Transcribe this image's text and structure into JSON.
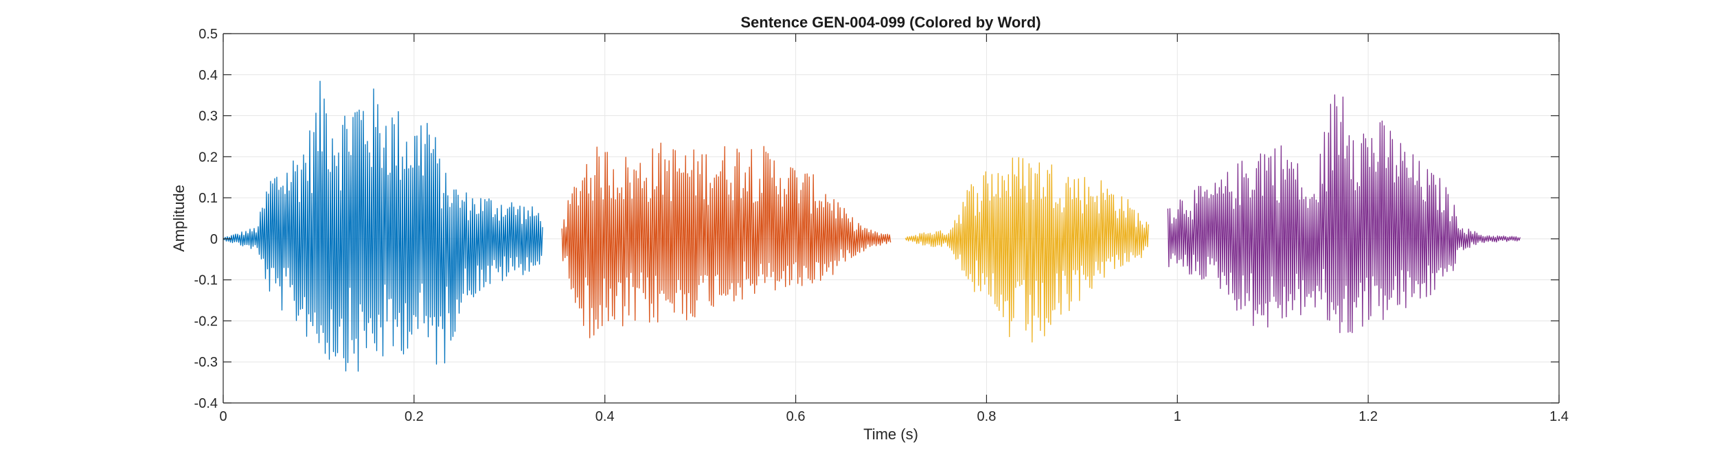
{
  "chart_data": {
    "type": "line",
    "title": "Sentence GEN-004-099 (Colored by Word)",
    "xlabel": "Time (s)",
    "ylabel": "Amplitude",
    "xlim": [
      0,
      1.4
    ],
    "ylim": [
      -0.4,
      0.5
    ],
    "xticks": [
      0,
      0.2,
      0.4,
      0.6,
      0.8,
      1,
      1.2,
      1.4
    ],
    "xtick_labels": [
      "0",
      "0.2",
      "0.4",
      "0.6",
      "0.8",
      "1",
      "1.2",
      "1.4"
    ],
    "yticks": [
      -0.4,
      -0.3,
      -0.2,
      -0.1,
      0,
      0.1,
      0.2,
      0.3,
      0.4,
      0.5
    ],
    "ytick_labels": [
      "-0.4",
      "-0.3",
      "-0.2",
      "-0.1",
      "0",
      "0.1",
      "0.2",
      "0.3",
      "0.4",
      "0.5"
    ],
    "grid": true,
    "series": [
      {
        "color": "#0072BD",
        "x": [
          0,
          0.035,
          0.05,
          0.07,
          0.09,
          0.105,
          0.12,
          0.14,
          0.16,
          0.18,
          0.2,
          0.215,
          0.23,
          0.25,
          0.27,
          0.3,
          0.335
        ],
        "envelope_max": [
          0.003,
          0.03,
          0.17,
          0.2,
          0.27,
          0.42,
          0.31,
          0.38,
          0.37,
          0.33,
          0.29,
          0.34,
          0.17,
          0.12,
          0.11,
          0.1,
          0.07
        ],
        "envelope_min": [
          -0.003,
          -0.03,
          -0.15,
          -0.2,
          -0.25,
          -0.3,
          -0.31,
          -0.34,
          -0.3,
          -0.31,
          -0.25,
          -0.3,
          -0.33,
          -0.17,
          -0.13,
          -0.1,
          -0.07
        ]
      },
      {
        "color": "#D95319",
        "x": [
          0.355,
          0.38,
          0.4,
          0.43,
          0.46,
          0.49,
          0.52,
          0.55,
          0.58,
          0.61,
          0.635,
          0.655,
          0.68,
          0.7
        ],
        "envelope_max": [
          0.05,
          0.22,
          0.23,
          0.2,
          0.24,
          0.22,
          0.23,
          0.25,
          0.21,
          0.17,
          0.13,
          0.06,
          0.02,
          0.01
        ],
        "envelope_min": [
          -0.05,
          -0.24,
          -0.25,
          -0.22,
          -0.21,
          -0.2,
          -0.16,
          -0.15,
          -0.13,
          -0.12,
          -0.1,
          -0.05,
          -0.02,
          -0.01
        ]
      },
      {
        "color": "#EDB120",
        "x": [
          0.715,
          0.74,
          0.76,
          0.78,
          0.8,
          0.82,
          0.84,
          0.86,
          0.88,
          0.9,
          0.92,
          0.94,
          0.97
        ],
        "envelope_max": [
          0.005,
          0.02,
          0.02,
          0.13,
          0.18,
          0.2,
          0.21,
          0.2,
          0.18,
          0.16,
          0.15,
          0.12,
          0.04
        ],
        "envelope_min": [
          -0.005,
          -0.02,
          -0.02,
          -0.1,
          -0.2,
          -0.25,
          -0.27,
          -0.26,
          -0.21,
          -0.15,
          -0.1,
          -0.07,
          -0.04
        ]
      },
      {
        "color": "#7E2F8E",
        "x": [
          0.99,
          1.01,
          1.04,
          1.07,
          1.09,
          1.12,
          1.14,
          1.16,
          1.175,
          1.19,
          1.22,
          1.25,
          1.28,
          1.3,
          1.32,
          1.36
        ],
        "envelope_max": [
          0.09,
          0.12,
          0.14,
          0.2,
          0.25,
          0.23,
          0.1,
          0.34,
          0.43,
          0.3,
          0.29,
          0.2,
          0.14,
          0.03,
          0.01,
          0.005
        ],
        "envelope_min": [
          -0.07,
          -0.09,
          -0.11,
          -0.2,
          -0.23,
          -0.2,
          -0.18,
          -0.22,
          -0.26,
          -0.22,
          -0.2,
          -0.17,
          -0.12,
          -0.03,
          -0.01,
          -0.005
        ]
      }
    ]
  }
}
